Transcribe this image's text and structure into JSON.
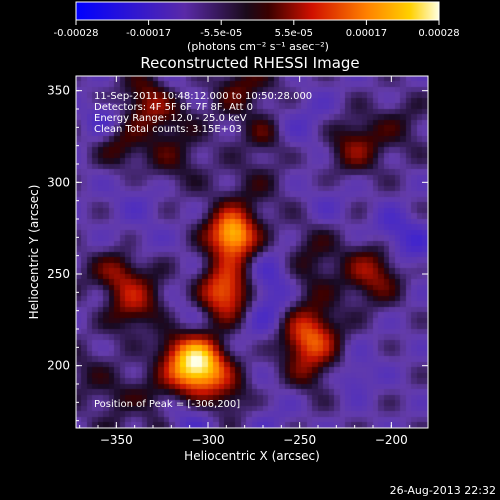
{
  "colorbar": {
    "tick_labels": [
      "-0.00028",
      "-0.00017",
      "-5.5e-05",
      "5.5e-05",
      "0.00017",
      "0.00028"
    ],
    "units": "(photons cm⁻² s⁻¹ asec⁻²)",
    "min": -0.00028,
    "max": 0.00028
  },
  "chart_data": {
    "type": "heatmap",
    "title": "Reconstructed RHESSI Image",
    "xlabel": "Heliocentric X (arcsec)",
    "ylabel": "Heliocentric Y (arcsec)",
    "xlim": [
      -372,
      -180
    ],
    "ylim": [
      166,
      358
    ],
    "x_ticks": [
      -350,
      -300,
      -250,
      -200
    ],
    "y_ticks": [
      200,
      250,
      300,
      350
    ],
    "x_tick_labels": [
      "−350",
      "−300",
      "−250",
      "−200"
    ],
    "y_tick_labels": [
      "200",
      "250",
      "300",
      "350"
    ],
    "colormap": "blue-purple-red-orange-yellow-white",
    "annotations": [
      "11-Sep-2011 10:48:12.000 to 10:50:28.000",
      "Detectors: 4F 5F 6F 7F 8F, Att 0",
      "Energy Range: 12.0 - 25.0 keV",
      "Clean     Total counts: 3.15E+03"
    ],
    "peak_label": "Position of Peak = [-306,200]",
    "peak": {
      "x": -306,
      "y": 200
    },
    "sources": [
      {
        "x": -306,
        "y": 200,
        "amplitude": 1.0
      },
      {
        "x": -290,
        "y": 240,
        "amplitude": 0.8
      },
      {
        "x": -285,
        "y": 270,
        "amplitude": 0.75
      },
      {
        "x": -340,
        "y": 230,
        "amplitude": 0.45
      },
      {
        "x": -245,
        "y": 215,
        "amplitude": 0.55
      },
      {
        "x": -210,
        "y": 250,
        "amplitude": 0.35
      },
      {
        "x": -330,
        "y": 345,
        "amplitude": 0.4
      },
      {
        "x": -220,
        "y": 320,
        "amplitude": 0.3
      }
    ]
  },
  "footer": {
    "timestamp": "26-Aug-2013 22:32"
  }
}
